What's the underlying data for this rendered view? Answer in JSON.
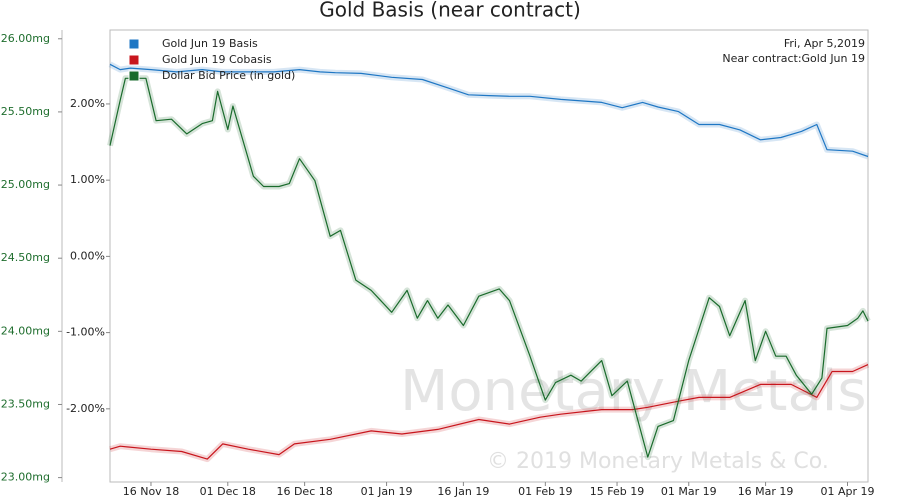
{
  "chart_data": {
    "type": "line",
    "title": "Gold Basis (near contract)",
    "annotations": [
      "Fri, Apr 5,2019",
      "Near contract:Gold Jun 19"
    ],
    "watermark": [
      "Monetary Metals",
      "© 2019 Monetary Metals & Co."
    ],
    "xlim": [
      "2018-11-08",
      "2019-04-05"
    ],
    "xticks": [
      {
        "value": "2018-11-16",
        "label": "16 Nov 18"
      },
      {
        "value": "2018-12-01",
        "label": "01 Dec 18"
      },
      {
        "value": "2018-12-16",
        "label": "16 Dec 18"
      },
      {
        "value": "2019-01-01",
        "label": "01 Jan 19"
      },
      {
        "value": "2019-01-16",
        "label": "16 Jan 19"
      },
      {
        "value": "2019-02-01",
        "label": "01 Feb 19"
      },
      {
        "value": "2019-02-15",
        "label": "15 Feb 19"
      },
      {
        "value": "2019-03-01",
        "label": "01 Mar 19"
      },
      {
        "value": "2019-03-16",
        "label": "16 Mar 19"
      },
      {
        "value": "2019-04-01",
        "label": "01 Apr 19"
      }
    ],
    "ylim": [
      22.97,
      26.06
    ],
    "yticks": [
      {
        "value": 23,
        "label": "23.00mg"
      },
      {
        "value": 23.5,
        "label": "23.50mg"
      },
      {
        "value": 24,
        "label": "24.00mg"
      },
      {
        "value": 24.5,
        "label": "24.50mg"
      },
      {
        "value": 25,
        "label": "25.00mg"
      },
      {
        "value": 25.5,
        "label": "25.50mg"
      },
      {
        "value": 26,
        "label": "26.00mg"
      }
    ],
    "y2lim": [
      -2.96,
      2.97
    ],
    "y2ticks": [
      {
        "value": -2,
        "label": "-2.00%"
      },
      {
        "value": -1,
        "label": "-1.00%"
      },
      {
        "value": 0,
        "label": "0.00%"
      },
      {
        "value": 1,
        "label": "1.00%"
      },
      {
        "value": 2,
        "label": "2.00%"
      }
    ],
    "grid": false,
    "legend": "top-left",
    "series": [
      {
        "name": "Gold Jun 19 Basis",
        "color": "#1f77c4",
        "axis": "y2",
        "x": [
          "2018-11-08",
          "2018-11-10",
          "2018-11-12",
          "2018-11-16",
          "2018-11-21",
          "2018-11-26",
          "2018-11-30",
          "2018-12-05",
          "2018-12-10",
          "2018-12-15",
          "2018-12-19",
          "2018-12-22",
          "2018-12-27",
          "2019-01-02",
          "2019-01-08",
          "2019-01-13",
          "2019-01-17",
          "2019-01-21",
          "2019-01-25",
          "2019-01-29",
          "2019-02-04",
          "2019-02-12",
          "2019-02-16",
          "2019-02-20",
          "2019-02-23",
          "2019-02-27",
          "2019-03-03",
          "2019-03-07",
          "2019-03-11",
          "2019-03-15",
          "2019-03-19",
          "2019-03-23",
          "2019-03-26",
          "2019-03-28",
          "2019-04-02",
          "2019-04-05"
        ],
        "values": [
          2.52,
          2.45,
          2.47,
          2.45,
          2.42,
          2.45,
          2.42,
          2.42,
          2.42,
          2.45,
          2.42,
          2.41,
          2.4,
          2.35,
          2.32,
          2.21,
          2.12,
          2.11,
          2.1,
          2.1,
          2.06,
          2.02,
          1.95,
          2.02,
          1.96,
          1.9,
          1.73,
          1.73,
          1.66,
          1.53,
          1.56,
          1.64,
          1.73,
          1.4,
          1.38,
          1.31
        ]
      },
      {
        "name": "Gold Jun 19 Cobasis",
        "color": "#c8161d",
        "axis": "y2",
        "x": [
          "2018-11-08",
          "2018-11-10",
          "2018-11-16",
          "2018-11-22",
          "2018-11-27",
          "2018-11-30",
          "2018-12-05",
          "2018-12-11",
          "2018-12-14",
          "2018-12-21",
          "2018-12-29",
          "2019-01-04",
          "2019-01-11",
          "2019-01-19",
          "2019-01-25",
          "2019-01-31",
          "2019-02-04",
          "2019-02-12",
          "2019-02-18",
          "2019-02-21",
          "2019-02-27",
          "2019-03-03",
          "2019-03-09",
          "2019-03-15",
          "2019-03-21",
          "2019-03-26",
          "2019-03-29",
          "2019-04-02",
          "2019-04-05"
        ],
        "values": [
          -2.53,
          -2.49,
          -2.53,
          -2.56,
          -2.66,
          -2.46,
          -2.53,
          -2.6,
          -2.46,
          -2.4,
          -2.29,
          -2.33,
          -2.27,
          -2.14,
          -2.2,
          -2.11,
          -2.07,
          -2.01,
          -2.01,
          -1.98,
          -1.9,
          -1.85,
          -1.85,
          -1.68,
          -1.68,
          -1.85,
          -1.51,
          -1.51,
          -1.42
        ]
      },
      {
        "name": "Dollar Bid Price (in gold)",
        "color": "#1a6b2c",
        "x": [
          "2018-11-08",
          "2018-11-10",
          "2018-11-11",
          "2018-11-15",
          "2018-11-17",
          "2018-11-20",
          "2018-11-23",
          "2018-11-26",
          "2018-11-28",
          "2018-11-29",
          "2018-12-01",
          "2018-12-02",
          "2018-12-06",
          "2018-12-08",
          "2018-12-11",
          "2018-12-13",
          "2018-12-15",
          "2018-12-18",
          "2018-12-21",
          "2018-12-23",
          "2018-12-26",
          "2018-12-29",
          "2019-01-02",
          "2019-01-05",
          "2019-01-07",
          "2019-01-09",
          "2019-01-11",
          "2019-01-13",
          "2019-01-16",
          "2019-01-19",
          "2019-01-23",
          "2019-01-25",
          "2019-01-29",
          "2019-02-01",
          "2019-02-03",
          "2019-02-06",
          "2019-02-08",
          "2019-02-10",
          "2019-02-12",
          "2019-02-14",
          "2019-02-17",
          "2019-02-21",
          "2019-02-23",
          "2019-02-26",
          "2019-03-01",
          "2019-03-05",
          "2019-03-07",
          "2019-03-09",
          "2019-03-12",
          "2019-03-14",
          "2019-03-16",
          "2019-03-18",
          "2019-03-20",
          "2019-03-22",
          "2019-03-25",
          "2019-03-27",
          "2019-03-28",
          "2019-04-01",
          "2019-04-03",
          "2019-04-04",
          "2019-04-05"
        ],
        "values": [
          25.27,
          25.58,
          25.73,
          25.73,
          25.44,
          25.45,
          25.35,
          25.42,
          25.44,
          25.64,
          25.38,
          25.54,
          25.06,
          24.99,
          24.99,
          25.01,
          25.18,
          25.03,
          24.65,
          24.69,
          24.35,
          24.28,
          24.13,
          24.28,
          24.09,
          24.21,
          24.09,
          24.18,
          24.04,
          24.24,
          24.29,
          24.21,
          23.83,
          23.53,
          23.65,
          23.7,
          23.66,
          23.73,
          23.8,
          23.56,
          23.66,
          23.14,
          23.35,
          23.39,
          23.8,
          24.23,
          24.17,
          23.97,
          24.21,
          23.8,
          24.0,
          23.83,
          23.83,
          23.7,
          23.57,
          23.68,
          24.02,
          24.04,
          24.09,
          24.14,
          24.07
        ]
      }
    ]
  }
}
